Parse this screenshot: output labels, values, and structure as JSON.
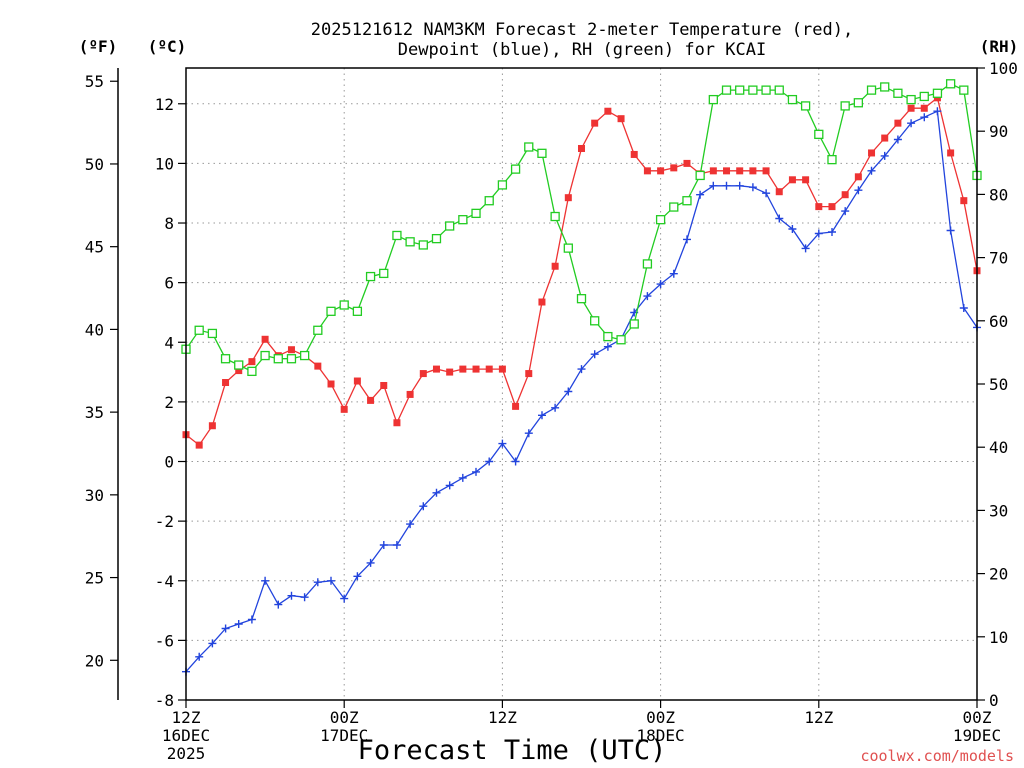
{
  "chart_data": {
    "type": "line",
    "title_line1": "2025121612 NAM3KM Forecast 2-meter Temperature (red),",
    "title_line2": "Dewpoint (blue), RH (green) for KCAI",
    "xlabel": "Forecast Time (UTC)",
    "credit": "coolwx.com/models",
    "units": {
      "f": "(ºF)",
      "c": "(ºC)",
      "rh": "(RH)"
    },
    "x_range_hours": [
      0,
      60
    ],
    "ylim_c": [
      -8,
      13.2
    ],
    "ylim_rh": [
      0,
      100
    ],
    "ylim_f": [
      17.6,
      55.8
    ],
    "x_ticks": [
      {
        "hour": 0,
        "label": "12Z",
        "sub": "16DEC",
        "sub2": "2025"
      },
      {
        "hour": 12,
        "label": "00Z",
        "sub": "17DEC",
        "sub2": ""
      },
      {
        "hour": 24,
        "label": "12Z",
        "sub": "",
        "sub2": ""
      },
      {
        "hour": 36,
        "label": "00Z",
        "sub": "18DEC",
        "sub2": ""
      },
      {
        "hour": 48,
        "label": "12Z",
        "sub": "",
        "sub2": ""
      },
      {
        "hour": 60,
        "label": "00Z",
        "sub": "19DEC",
        "sub2": ""
      }
    ],
    "c_ticks": [
      -8,
      -6,
      -4,
      -2,
      0,
      2,
      4,
      6,
      8,
      10,
      12
    ],
    "rh_ticks": [
      0,
      10,
      20,
      30,
      40,
      50,
      60,
      70,
      80,
      90,
      100
    ],
    "f_ticks": [
      20,
      25,
      30,
      35,
      40,
      45,
      50,
      55
    ],
    "hours": [
      0,
      1,
      2,
      3,
      4,
      5,
      6,
      7,
      8,
      9,
      10,
      11,
      12,
      13,
      14,
      15,
      16,
      17,
      18,
      19,
      20,
      21,
      22,
      23,
      24,
      25,
      26,
      27,
      28,
      29,
      30,
      31,
      32,
      33,
      34,
      35,
      36,
      37,
      38,
      39,
      40,
      41,
      42,
      43,
      44,
      45,
      46,
      47,
      48,
      49,
      50,
      51,
      52,
      53,
      54,
      55,
      56,
      57,
      58,
      59,
      60
    ],
    "series": [
      {
        "name": "2-meter Temperature",
        "unit": "C",
        "color": "#ee3333",
        "marker": "filled-square",
        "values": [
          0.9,
          0.55,
          1.2,
          2.65,
          3.05,
          3.35,
          4.1,
          3.55,
          3.75,
          3.55,
          3.2,
          2.6,
          1.75,
          2.7,
          2.05,
          2.55,
          1.3,
          2.25,
          2.95,
          3.1,
          3.0,
          3.1,
          3.1,
          3.1,
          3.1,
          1.85,
          2.95,
          5.35,
          6.55,
          8.85,
          10.5,
          11.35,
          11.75,
          11.5,
          10.3,
          9.75,
          9.75,
          9.85,
          10.0,
          9.65,
          9.75,
          9.75,
          9.75,
          9.75,
          9.75,
          9.05,
          9.45,
          9.45,
          8.55,
          8.55,
          8.95,
          9.55,
          10.35,
          10.85,
          11.35,
          11.85,
          11.85,
          12.2,
          10.35,
          8.75,
          6.4
        ]
      },
      {
        "name": "Dewpoint",
        "unit": "C",
        "color": "#2244dd",
        "marker": "plus",
        "values": [
          -7.05,
          -6.55,
          -6.1,
          -5.6,
          -5.45,
          -5.3,
          -4.0,
          -4.8,
          -4.5,
          -4.55,
          -4.05,
          -4.0,
          -4.6,
          -3.85,
          -3.4,
          -2.8,
          -2.8,
          -2.1,
          -1.5,
          -1.05,
          -0.8,
          -0.55,
          -0.35,
          0.0,
          0.6,
          0.0,
          0.95,
          1.55,
          1.8,
          2.35,
          3.1,
          3.6,
          3.85,
          4.1,
          5.0,
          5.55,
          5.95,
          6.3,
          7.45,
          8.95,
          9.25,
          9.25,
          9.25,
          9.2,
          9.0,
          8.15,
          7.8,
          7.15,
          7.65,
          7.7,
          8.4,
          9.1,
          9.75,
          10.25,
          10.8,
          11.35,
          11.55,
          11.75,
          7.75,
          5.15,
          4.5
        ]
      },
      {
        "name": "RH",
        "unit": "%",
        "color": "#22cc22",
        "marker": "open-square",
        "values": [
          55.5,
          58.5,
          58,
          54,
          53,
          52,
          54.5,
          54,
          54,
          54.5,
          58.5,
          61.5,
          62.5,
          61.5,
          67,
          67.5,
          73.5,
          72.5,
          72,
          73,
          75,
          76,
          77,
          79,
          81.5,
          84,
          87.5,
          86.5,
          76.5,
          71.5,
          63.5,
          60,
          57.5,
          57,
          59.5,
          69,
          76,
          78,
          79,
          83,
          95,
          96.5,
          96.5,
          96.5,
          96.5,
          96.5,
          95,
          94,
          89.5,
          85.5,
          94,
          94.5,
          96.5,
          97,
          96,
          95,
          95.5,
          96,
          97.5,
          96.5,
          83
        ]
      }
    ]
  }
}
